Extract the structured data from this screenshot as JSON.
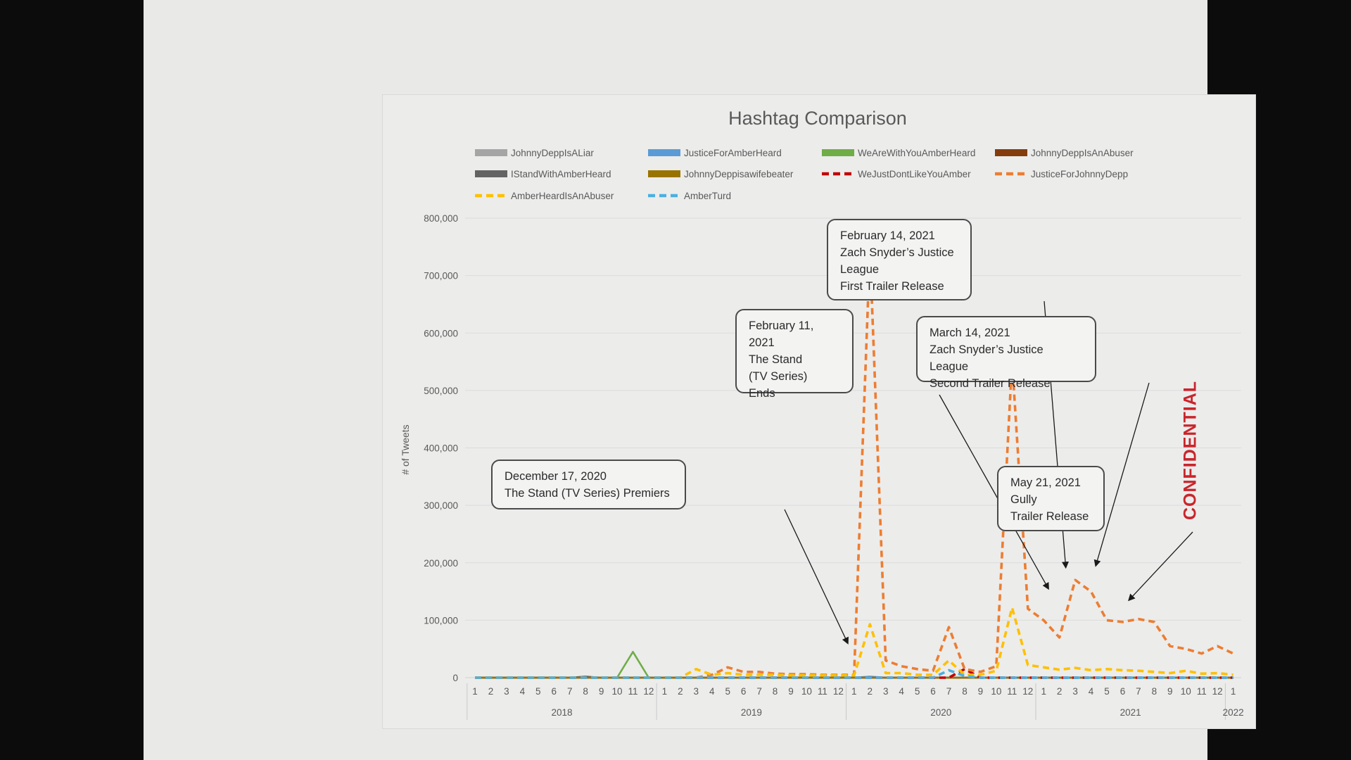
{
  "watermark": "CONFIDENTIAL",
  "colors": {
    "slide_bg": "#e9e9e8",
    "confidential": "#c9252c"
  },
  "chart_data": {
    "type": "line",
    "title": "Hashtag Comparison",
    "ylabel": "# of Tweets",
    "xlabel": "",
    "ylim": [
      0,
      800000
    ],
    "yticks": [
      0,
      100000,
      200000,
      300000,
      400000,
      500000,
      600000,
      700000,
      800000
    ],
    "ytick_labels": [
      "0",
      "100,000",
      "200,000",
      "300,000",
      "400,000",
      "500,000",
      "600,000",
      "700,000",
      "800,000"
    ],
    "grid": true,
    "legend_position": "top",
    "x_month_labels": [
      "1",
      "2",
      "3",
      "4",
      "5",
      "6",
      "7",
      "8",
      "9",
      "10",
      "11",
      "12",
      "1",
      "2",
      "3",
      "4",
      "5",
      "6",
      "7",
      "8",
      "9",
      "10",
      "11",
      "12",
      "1",
      "2",
      "3",
      "4",
      "5",
      "6",
      "7",
      "8",
      "9",
      "10",
      "11",
      "12",
      "1",
      "2",
      "3",
      "4",
      "5",
      "6",
      "7",
      "8",
      "9",
      "10",
      "11",
      "12",
      "1"
    ],
    "x_year_groups": [
      {
        "label": "2018",
        "months": 12
      },
      {
        "label": "2019",
        "months": 12
      },
      {
        "label": "2020",
        "months": 12
      },
      {
        "label": "2021",
        "months": 12
      },
      {
        "label": "2022",
        "months": 1
      }
    ],
    "series": [
      {
        "name": "JohnnyDeppIsALiar",
        "color": "#a5a5a5",
        "dash": false,
        "values": [
          0,
          0,
          0,
          0,
          0,
          0,
          0,
          0,
          0,
          0,
          0,
          0,
          0,
          0,
          0,
          0,
          0,
          0,
          0,
          0,
          0,
          0,
          0,
          0,
          0,
          0,
          0,
          0,
          0,
          0,
          0,
          0,
          0,
          0,
          0,
          0,
          0,
          0,
          0,
          0,
          0,
          0,
          0,
          0,
          0,
          0,
          0,
          0,
          0
        ]
      },
      {
        "name": "JusticeForAmberHeard",
        "color": "#5b9bd5",
        "dash": false,
        "values": [
          0,
          0,
          0,
          0,
          0,
          0,
          0,
          0,
          0,
          0,
          0,
          0,
          0,
          0,
          0,
          0,
          0,
          0,
          0,
          0,
          0,
          0,
          0,
          0,
          0,
          2000,
          0,
          0,
          0,
          0,
          0,
          0,
          0,
          0,
          0,
          0,
          0,
          0,
          0,
          0,
          0,
          0,
          0,
          0,
          0,
          0,
          0,
          0,
          0
        ]
      },
      {
        "name": "WeAreWithYouAmberHeard",
        "color": "#70ad47",
        "dash": false,
        "values": [
          0,
          0,
          0,
          0,
          0,
          0,
          0,
          0,
          0,
          0,
          45000,
          0,
          0,
          0,
          0,
          0,
          0,
          0,
          0,
          0,
          0,
          0,
          0,
          0,
          0,
          0,
          0,
          0,
          0,
          0,
          0,
          0,
          0,
          0,
          0,
          0,
          0,
          0,
          0,
          0,
          0,
          0,
          0,
          0,
          0,
          0,
          0,
          0,
          0
        ]
      },
      {
        "name": "JohnnyDeppIsAnAbuser",
        "color": "#843c0c",
        "dash": false,
        "values": [
          0,
          0,
          0,
          0,
          0,
          0,
          0,
          0,
          0,
          0,
          0,
          0,
          0,
          0,
          0,
          0,
          0,
          0,
          0,
          0,
          0,
          0,
          0,
          0,
          0,
          0,
          0,
          0,
          0,
          0,
          0,
          0,
          0,
          0,
          0,
          0,
          0,
          0,
          0,
          0,
          0,
          0,
          0,
          0,
          0,
          0,
          0,
          0,
          0
        ]
      },
      {
        "name": "IStandWithAmberHeard",
        "color": "#636363",
        "dash": false,
        "values": [
          0,
          0,
          0,
          0,
          0,
          0,
          0,
          2000,
          0,
          0,
          0,
          0,
          0,
          0,
          0,
          0,
          0,
          0,
          0,
          0,
          0,
          0,
          0,
          0,
          0,
          0,
          0,
          0,
          0,
          0,
          0,
          0,
          0,
          0,
          0,
          0,
          0,
          0,
          0,
          0,
          0,
          0,
          0,
          0,
          0,
          0,
          0,
          0,
          0
        ]
      },
      {
        "name": "JohnnyDeppisawifebeater",
        "color": "#997300",
        "dash": false,
        "values": [
          0,
          0,
          0,
          0,
          0,
          0,
          0,
          0,
          0,
          0,
          0,
          0,
          0,
          0,
          0,
          0,
          0,
          0,
          0,
          0,
          0,
          0,
          0,
          0,
          0,
          0,
          0,
          0,
          0,
          0,
          0,
          0,
          0,
          0,
          0,
          0,
          0,
          0,
          0,
          0,
          0,
          0,
          0,
          0,
          0,
          0,
          0,
          0,
          0
        ]
      },
      {
        "name": "WeJustDontLikeYouAmber",
        "color": "#c00000",
        "dash": true,
        "values": [
          0,
          0,
          0,
          0,
          0,
          0,
          0,
          0,
          0,
          0,
          0,
          0,
          0,
          0,
          0,
          0,
          0,
          0,
          0,
          0,
          0,
          0,
          0,
          0,
          0,
          0,
          0,
          0,
          0,
          0,
          0,
          15000,
          0,
          0,
          0,
          0,
          0,
          0,
          0,
          0,
          0,
          0,
          0,
          0,
          0,
          0,
          0,
          0,
          0
        ]
      },
      {
        "name": "JusticeForJohnnyDepp",
        "color": "#ed7d31",
        "dash": true,
        "values": [
          0,
          0,
          0,
          0,
          0,
          0,
          0,
          0,
          0,
          0,
          0,
          0,
          0,
          0,
          0,
          5000,
          18000,
          10000,
          10000,
          7000,
          6000,
          6000,
          5000,
          5000,
          5000,
          745000,
          30000,
          20000,
          15000,
          12000,
          88000,
          15000,
          10000,
          20000,
          552000,
          120000,
          100000,
          70000,
          170000,
          150000,
          100000,
          97000,
          102000,
          97000,
          55000,
          50000,
          42000,
          55000,
          42000
        ]
      },
      {
        "name": "AmberHeardIsAnAbuser",
        "color": "#ffc000",
        "dash": true,
        "values": [
          0,
          0,
          0,
          0,
          0,
          0,
          0,
          0,
          0,
          0,
          0,
          0,
          0,
          0,
          15000,
          5000,
          8000,
          5000,
          5000,
          5000,
          4000,
          4000,
          4000,
          4000,
          4000,
          93000,
          8000,
          8000,
          5000,
          5000,
          30000,
          5000,
          5000,
          12000,
          122000,
          22000,
          18000,
          14000,
          17000,
          13000,
          15000,
          13000,
          12000,
          10000,
          8000,
          12000,
          7000,
          8000,
          5000
        ]
      },
      {
        "name": "AmberTurd",
        "color": "#4ab0e0",
        "dash": true,
        "values": [
          0,
          0,
          0,
          0,
          0,
          0,
          0,
          0,
          0,
          0,
          0,
          0,
          0,
          0,
          0,
          0,
          0,
          0,
          0,
          0,
          0,
          0,
          0,
          0,
          0,
          0,
          0,
          0,
          0,
          0,
          13000,
          3000,
          0,
          0,
          0,
          0,
          0,
          0,
          0,
          0,
          0,
          0,
          0,
          0,
          0,
          0,
          0,
          0,
          0
        ]
      }
    ],
    "annotations": [
      {
        "text": "December 17, 2020\nThe Stand (TV Series) Premiers",
        "target_index": 23.6,
        "target_value": 60000
      },
      {
        "text": "February 11, 2021\nThe Stand\n(TV Series)\nEnds",
        "target_index": 36.3,
        "target_value": 155000
      },
      {
        "text": "February 14, 2021\nZach Snyder’s Justice\nLeague\nFirst Trailer Release",
        "target_index": 37.4,
        "target_value": 192000
      },
      {
        "text": "March 14, 2021\nZach Snyder’s Justice League\nSecond Trailer Release",
        "target_index": 39.3,
        "target_value": 195000
      },
      {
        "text": "May 21, 2021\nGully\nTrailer Release",
        "target_index": 41.4,
        "target_value": 135000
      }
    ]
  }
}
